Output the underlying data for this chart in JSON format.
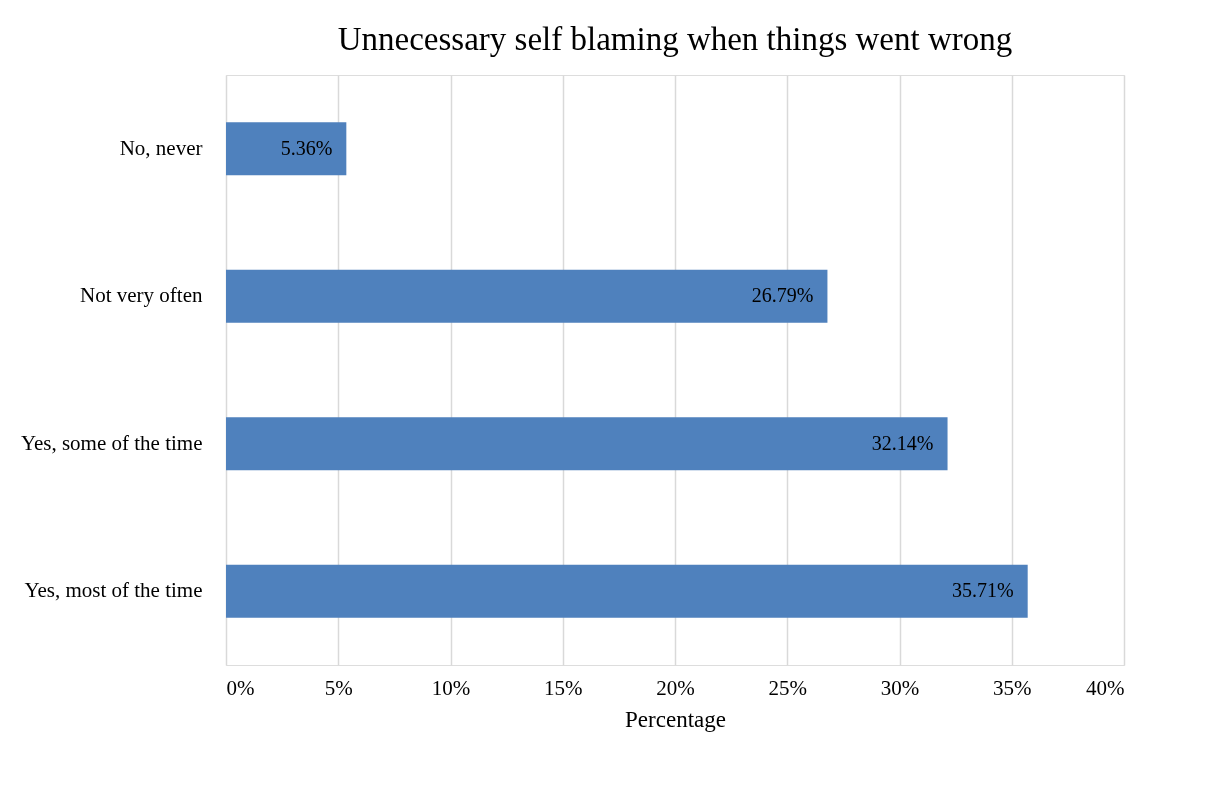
{
  "chart_data": {
    "type": "bar",
    "orientation": "horizontal",
    "title": "Unnecessary self blaming when things went wrong",
    "xlabel": "Percentage",
    "categories": [
      "No, never",
      "Not very often",
      "Yes, some of the time",
      "Yes, most of the time"
    ],
    "values": [
      5.36,
      26.79,
      32.14,
      35.71
    ],
    "value_labels": [
      "5.36%",
      "26.79%",
      "32.14%",
      "35.71%"
    ],
    "color": "#4f81bd",
    "xlim": [
      0,
      40
    ],
    "xticks": [
      {
        "value": 0,
        "label": "0%"
      },
      {
        "value": 5,
        "label": "5%"
      },
      {
        "value": 10,
        "label": "10%"
      },
      {
        "value": 15,
        "label": "15%"
      },
      {
        "value": 20,
        "label": "20%"
      },
      {
        "value": 25,
        "label": "25%"
      },
      {
        "value": 30,
        "label": "30%"
      },
      {
        "value": 35,
        "label": "35%"
      },
      {
        "value": 40,
        "label": "40%"
      }
    ],
    "grid": "x"
  }
}
